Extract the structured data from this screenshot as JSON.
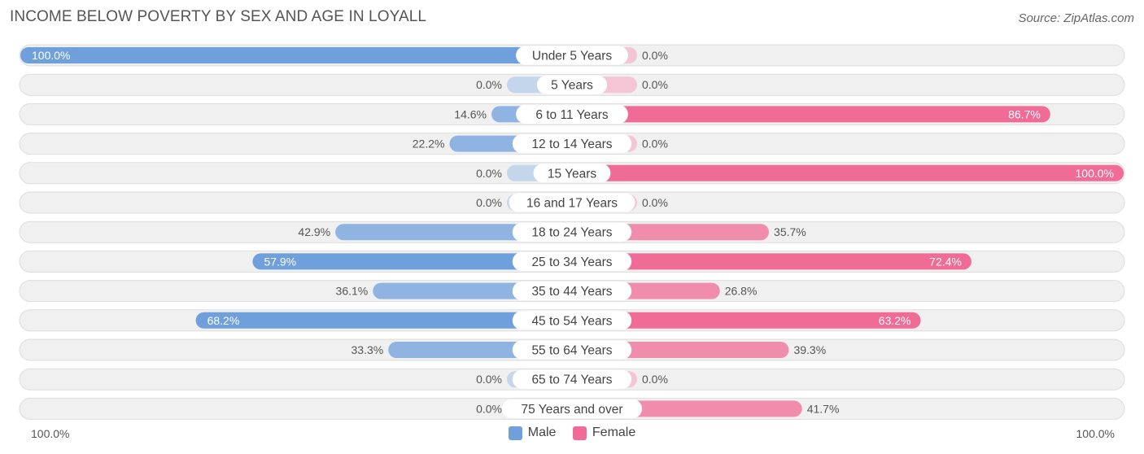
{
  "title": "INCOME BELOW POVERTY BY SEX AND AGE IN LOYALL",
  "source": "Source: ZipAtlas.com",
  "axis": {
    "left_label": "100.0%",
    "right_label": "100.0%"
  },
  "colors": {
    "male": "#6fa0dc",
    "male_light": "#a7c5ea",
    "female": "#f06b95",
    "female_light": "#f7a9c2",
    "track": "#f0f0f0",
    "track_border": "#dddddd"
  },
  "chart_data": {
    "type": "bar",
    "orientation": "horizontal-diverging",
    "categories": [
      "Under 5 Years",
      "5 Years",
      "6 to 11 Years",
      "12 to 14 Years",
      "15 Years",
      "16 and 17 Years",
      "18 to 24 Years",
      "25 to 34 Years",
      "35 to 44 Years",
      "45 to 54 Years",
      "55 to 64 Years",
      "65 to 74 Years",
      "75 Years and over"
    ],
    "series": [
      {
        "name": "Male",
        "values": [
          100.0,
          0.0,
          14.6,
          22.2,
          0.0,
          0.0,
          42.9,
          57.9,
          36.1,
          68.2,
          33.3,
          0.0,
          0.0
        ],
        "labels": [
          "100.0%",
          "0.0%",
          "14.6%",
          "22.2%",
          "0.0%",
          "0.0%",
          "42.9%",
          "57.9%",
          "36.1%",
          "68.2%",
          "33.3%",
          "0.0%",
          "0.0%"
        ]
      },
      {
        "name": "Female",
        "values": [
          0.0,
          0.0,
          86.7,
          0.0,
          100.0,
          0.0,
          35.7,
          72.4,
          26.8,
          63.2,
          39.3,
          0.0,
          41.7
        ],
        "labels": [
          "0.0%",
          "0.0%",
          "86.7%",
          "0.0%",
          "100.0%",
          "0.0%",
          "35.7%",
          "72.4%",
          "26.8%",
          "63.2%",
          "39.3%",
          "0.0%",
          "41.7%"
        ]
      }
    ],
    "xlim": [
      -100,
      100
    ],
    "legend": "bottom-center",
    "grid": false
  }
}
